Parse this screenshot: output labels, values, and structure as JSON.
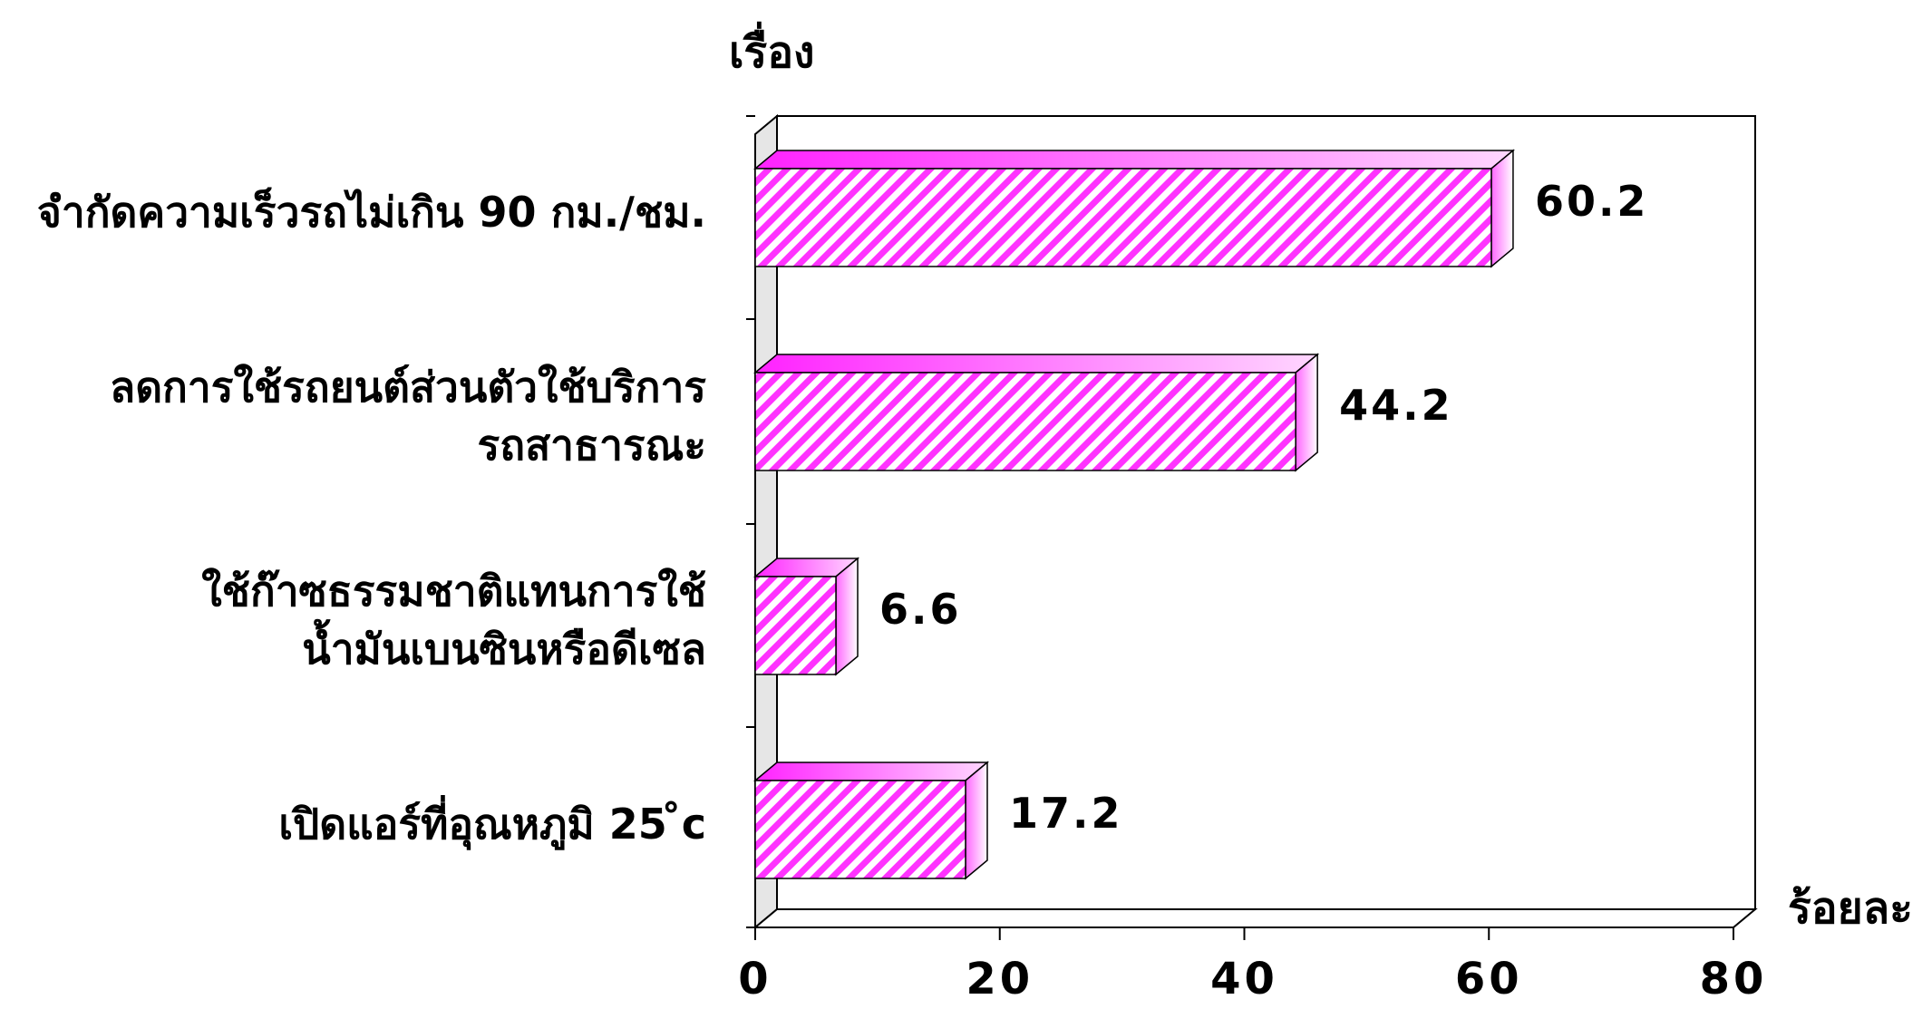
{
  "chart_data": {
    "type": "bar",
    "orientation": "horizontal",
    "ylabel": "เรื่อง",
    "xlabel": "ร้อยละ",
    "xlim": [
      0,
      80
    ],
    "xticks": [
      "0",
      "20",
      "40",
      "60",
      "80"
    ],
    "categories": [
      {
        "lines": [
          "จำกัดความเร็วรถไม่เกิน 90 กม./ชม."
        ],
        "value": 60.2,
        "value_label": "60.2"
      },
      {
        "lines": [
          "ลดการใช้รถยนต์ส่วนตัวใช้บริการ",
          "รถสาธารณะ"
        ],
        "value": 44.2,
        "value_label": "44.2"
      },
      {
        "lines": [
          "ใช้ก๊าซธรรมชาติแทนการใช้",
          "น้ำมันเบนซินหรือดีเซล"
        ],
        "value": 6.6,
        "value_label": "6.6"
      },
      {
        "lines": [
          "เปิดแอร์ที่อุณหภูมิ  25 ̊c"
        ],
        "value": 17.2,
        "value_label": "17.2"
      }
    ],
    "bar_color": "#ff33ff",
    "bar_stripe_color": "#ffffff",
    "grid": false
  }
}
